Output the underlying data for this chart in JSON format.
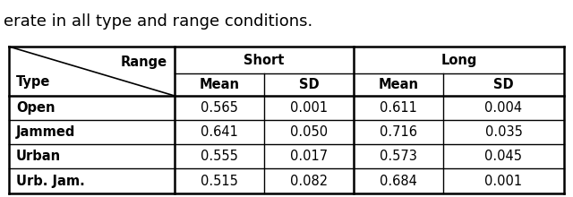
{
  "row_labels": [
    "Open",
    "Jammed",
    "Urban",
    "Urb. Jam."
  ],
  "table_data": [
    [
      "0.565",
      "0.001",
      "0.611",
      "0.004"
    ],
    [
      "0.641",
      "0.050",
      "0.716",
      "0.035"
    ],
    [
      "0.555",
      "0.017",
      "0.573",
      "0.045"
    ],
    [
      "0.515",
      "0.082",
      "0.684",
      "0.001"
    ]
  ],
  "corner_label_top": "Range",
  "corner_label_bottom": "Type",
  "short_label": "Short",
  "long_label": "Long",
  "sub_headers": [
    "Mean",
    "SD",
    "Mean",
    "SD"
  ],
  "bg_color": "#ffffff",
  "text_color": "#000000",
  "border_color": "#000000",
  "title_text": "erate in all type and range conditions.",
  "font_size": 10.5,
  "header_font_size": 10.5,
  "title_font_size": 13
}
